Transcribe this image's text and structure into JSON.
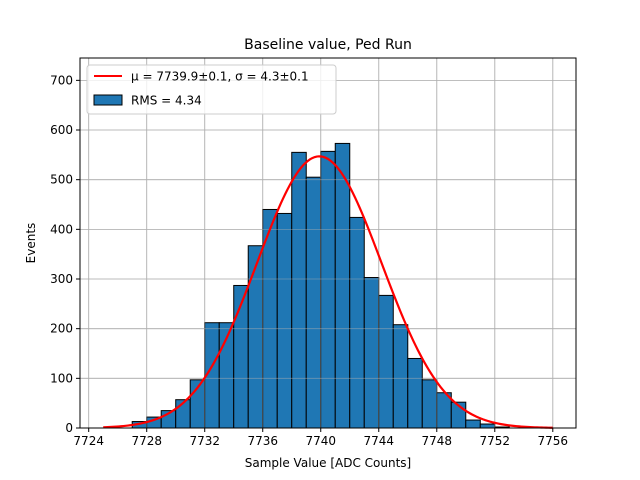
{
  "chart_data": {
    "type": "bar",
    "title": "Baseline value, Ped Run",
    "xlabel": "Sample Value [ADC Counts]",
    "ylabel": "Events",
    "xlim": [
      7723.4,
      7757.6
    ],
    "ylim": [
      0,
      745
    ],
    "grid": true,
    "legend_position": "top-left",
    "x_ticks": [
      7724,
      7728,
      7732,
      7736,
      7740,
      7744,
      7748,
      7752,
      7756
    ],
    "y_ticks": [
      0,
      100,
      200,
      300,
      400,
      500,
      600,
      700
    ],
    "bin_width": 1,
    "histogram": {
      "name": "RMS = 4.34",
      "color": "#1f77b4",
      "edge_color": "#000000",
      "bin_edges": [
        7727,
        7728,
        7729,
        7730,
        7731,
        7732,
        7733,
        7734,
        7735,
        7736,
        7737,
        7738,
        7739,
        7740,
        7741,
        7742,
        7743,
        7744,
        7745,
        7746,
        7747,
        7748,
        7749,
        7750,
        7751,
        7752,
        7753
      ],
      "counts": [
        13,
        22,
        35,
        57,
        97,
        212,
        212,
        287,
        367,
        440,
        432,
        555,
        505,
        557,
        573,
        424,
        303,
        267,
        208,
        140,
        97,
        71,
        52,
        16,
        8,
        2
      ]
    },
    "fit": {
      "name": "μ = 7739.9±0.1, σ = 4.3±0.1",
      "color": "#ff0000",
      "mu": 7739.9,
      "sigma": 4.3,
      "peak": 547,
      "x_range": [
        7725,
        7756
      ]
    }
  }
}
